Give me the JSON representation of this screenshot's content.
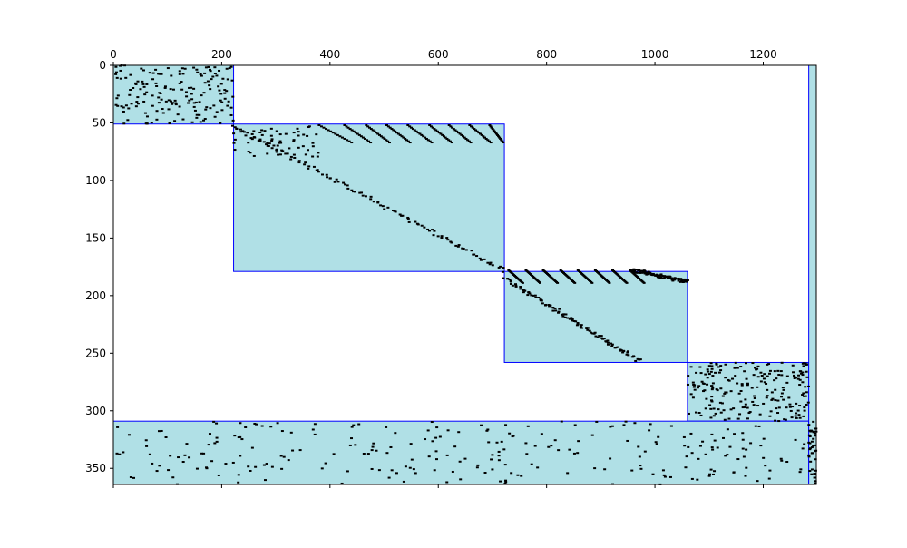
{
  "chart_data": {
    "type": "heatmap",
    "subtype": "sparsity-pattern",
    "title": "",
    "xlabel": "",
    "ylabel": "",
    "x_axis_position": "top",
    "y_axis_inverted": true,
    "xlim": [
      0,
      1298
    ],
    "ylim": [
      364,
      0
    ],
    "x_ticks": [
      0,
      200,
      400,
      600,
      800,
      1000,
      1200
    ],
    "x_tick_labels": [
      "0",
      "200",
      "400",
      "600",
      "800",
      "1000",
      "1200"
    ],
    "y_ticks": [
      0,
      50,
      100,
      150,
      200,
      250,
      300,
      350
    ],
    "y_tick_labels": [
      "0",
      "50",
      "100",
      "150",
      "200",
      "250",
      "300",
      "350"
    ],
    "grid": false,
    "legend": "none",
    "colors": {
      "block_fill": "#b0e0e6",
      "block_edge": "#0000ff",
      "nonzero": "#000000"
    },
    "blocks": [
      {
        "col_start": 0,
        "col_end": 222,
        "row_start": 0,
        "row_end": 51
      },
      {
        "col_start": 222,
        "col_end": 722,
        "row_start": 51,
        "row_end": 179
      },
      {
        "col_start": 722,
        "col_end": 1060,
        "row_start": 179,
        "row_end": 258
      },
      {
        "col_start": 1060,
        "col_end": 1284,
        "row_start": 258,
        "row_end": 309
      },
      {
        "col_start": 0,
        "col_end": 1284,
        "row_start": 309,
        "row_end": 364
      },
      {
        "col_start": 1284,
        "col_end": 1298,
        "row_start": 0,
        "row_end": 364
      }
    ],
    "diagonal_bands": [
      {
        "col_start": 222,
        "row_start": 53,
        "col_end": 722,
        "row_end": 178
      },
      {
        "col_start": 722,
        "col_end": 972,
        "row_start": 185,
        "row_end": 257
      },
      {
        "col_start": 960,
        "row_start": 178,
        "col_end": 1060,
        "row_end": 188
      }
    ],
    "stripes": [
      {
        "col_start": 380,
        "row_start": 52,
        "col_end": 440,
        "row_end": 67
      },
      {
        "col_start": 427,
        "row_start": 52,
        "col_end": 475,
        "row_end": 67
      },
      {
        "col_start": 467,
        "row_start": 52,
        "col_end": 510,
        "row_end": 67
      },
      {
        "col_start": 505,
        "row_start": 52,
        "col_end": 548,
        "row_end": 67
      },
      {
        "col_start": 544,
        "row_start": 52,
        "col_end": 588,
        "row_end": 67
      },
      {
        "col_start": 584,
        "row_start": 52,
        "col_end": 625,
        "row_end": 67
      },
      {
        "col_start": 620,
        "row_start": 52,
        "col_end": 660,
        "row_end": 67
      },
      {
        "col_start": 658,
        "row_start": 52,
        "col_end": 697,
        "row_end": 67
      },
      {
        "col_start": 695,
        "row_start": 52,
        "col_end": 720,
        "row_end": 67
      },
      {
        "col_start": 730,
        "row_start": 178,
        "col_end": 756,
        "row_end": 189
      },
      {
        "col_start": 762,
        "row_start": 178,
        "col_end": 788,
        "row_end": 189
      },
      {
        "col_start": 794,
        "row_start": 178,
        "col_end": 820,
        "row_end": 189
      },
      {
        "col_start": 826,
        "row_start": 178,
        "col_end": 852,
        "row_end": 189
      },
      {
        "col_start": 858,
        "row_start": 178,
        "col_end": 884,
        "row_end": 189
      },
      {
        "col_start": 890,
        "row_start": 178,
        "col_end": 916,
        "row_end": 189
      },
      {
        "col_start": 922,
        "row_start": 178,
        "col_end": 948,
        "row_end": 189
      },
      {
        "col_start": 954,
        "row_start": 178,
        "col_end": 980,
        "row_end": 189
      }
    ],
    "scattered_nonzeros": [
      {
        "col_start": 0,
        "col_end": 222,
        "row_start": 0,
        "row_end": 51,
        "count": 170,
        "seed": 11
      },
      {
        "col_start": 222,
        "col_end": 380,
        "row_start": 52,
        "row_end": 80,
        "count": 60,
        "seed": 12
      },
      {
        "col_start": 1060,
        "col_end": 1284,
        "row_start": 258,
        "row_end": 309,
        "count": 220,
        "seed": 13
      },
      {
        "col_start": 0,
        "col_end": 1284,
        "row_start": 309,
        "row_end": 364,
        "count": 260,
        "seed": 14
      },
      {
        "col_start": 1284,
        "col_end": 1298,
        "row_start": 309,
        "row_end": 364,
        "count": 40,
        "seed": 15
      }
    ]
  }
}
